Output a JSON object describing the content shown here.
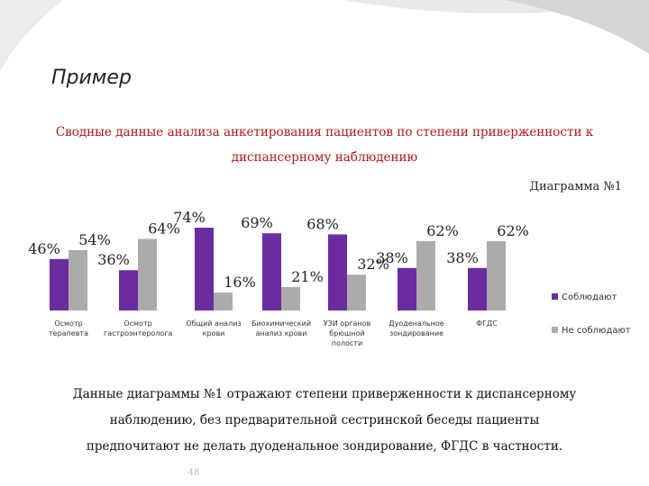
{
  "header": {
    "title": "Пример",
    "subtitle_lines": [
      "Сводные данные анализа анкетирования пациентов по степени приверженности к",
      "диспансерному наблюдению"
    ]
  },
  "chart_data": {
    "type": "bar",
    "title": "Диаграмма №1",
    "categories": [
      "Осмотр терапевта",
      "Осмотр гастроэнтеролога",
      "Общий анализ крови",
      "Биохимический анализ крови",
      "УЗИ органов брюшной полости",
      "Дуоденальное зондирование",
      "ФГДС"
    ],
    "series": [
      {
        "name": "Соблюдают",
        "color": "#6a2c9e",
        "values": [
          46,
          36,
          74,
          69,
          68,
          38,
          38
        ],
        "value_labels": [
          "46%",
          "36%",
          "74%",
          "69%",
          "68%",
          "38%",
          "38%"
        ]
      },
      {
        "name": "Не соблюдают",
        "color": "#ababab",
        "values": [
          54,
          64,
          16,
          21,
          32,
          62,
          62
        ],
        "value_labels": [
          "54%",
          "64%",
          "16%",
          "21%",
          "32%",
          "62%",
          "62%"
        ]
      }
    ],
    "legend": "right"
  },
  "body": {
    "lines": [
      "Данные диаграммы №1 отражают степени приверженности к диспансерному",
      "наблюдению, без предварительной сестринской беседы пациенты",
      "предпочитают не делать дуоденальное зондирование, ФГДС в частности."
    ]
  },
  "footer": {
    "page": "48"
  }
}
